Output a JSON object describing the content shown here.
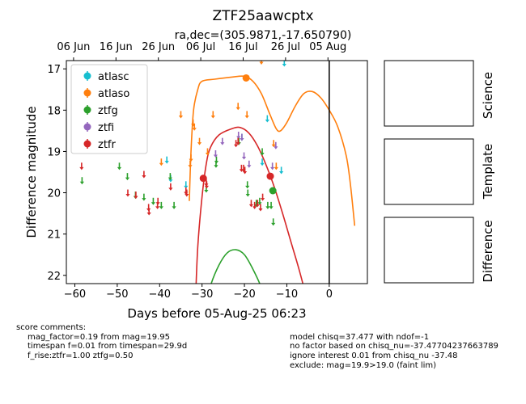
{
  "chart_data": {
    "type": "scatter",
    "title": "ZTF25aawcptx",
    "subtitle": "ra,dec=(305.9871,-17.650790)",
    "xlabel": "Days before 05-Aug-25 06:23",
    "ylabel": "Difference magnitude",
    "xlim": [
      -62,
      9
    ],
    "ylim": [
      22.2,
      16.8
    ],
    "y_inverted": true,
    "xticks": [
      -60,
      -50,
      -40,
      -30,
      -20,
      -10,
      0
    ],
    "yticks": [
      17,
      18,
      19,
      20,
      21,
      22
    ],
    "top_axis_ticks": [
      {
        "x": -60.3,
        "label": "06 Jun"
      },
      {
        "x": -50.3,
        "label": "16 Jun"
      },
      {
        "x": -40.3,
        "label": "26 Jun"
      },
      {
        "x": -30.3,
        "label": "06 Jul"
      },
      {
        "x": -20.3,
        "label": "16 Jul"
      },
      {
        "x": -10.3,
        "label": "26 Jul"
      },
      {
        "x": -0.3,
        "label": "05 Aug"
      }
    ],
    "vline_x": 0,
    "legend_position": "upper-left",
    "series": [
      {
        "name": "atlasc",
        "color": "#17becf",
        "upper_limits": [
          [
            -38.3,
            19.2
          ],
          [
            -37.4,
            19.65
          ],
          [
            -33.8,
            19.8
          ],
          [
            -20.6,
            18.65
          ],
          [
            -15.8,
            19.25
          ],
          [
            -14.6,
            18.2
          ],
          [
            -10.6,
            16.85
          ],
          [
            -11.3,
            19.45
          ]
        ],
        "detections": []
      },
      {
        "name": "atlaso",
        "color": "#ff7f0e",
        "upper_limits": [
          [
            -39.6,
            19.25
          ],
          [
            -35.0,
            18.1
          ],
          [
            -32.1,
            18.3
          ],
          [
            -31.8,
            18.4
          ],
          [
            -32.8,
            19.3
          ],
          [
            -30.6,
            18.75
          ],
          [
            -28.7,
            19.0
          ],
          [
            -27.4,
            18.1
          ],
          [
            -21.5,
            17.9
          ],
          [
            -19.4,
            18.1
          ],
          [
            -16.0,
            16.8
          ],
          [
            -13.1,
            18.8
          ],
          [
            -12.5,
            19.35
          ],
          [
            -32.6,
            19.15
          ]
        ],
        "detections": [
          [
            -19.6,
            17.22
          ]
        ],
        "model": {
          "x_start": -33.0,
          "x_end": 6.0,
          "points": [
            [
              -33.0,
              20.2
            ],
            [
              -32.6,
              19.0
            ],
            [
              -32.0,
              18.0
            ],
            [
              -31.0,
              17.5
            ],
            [
              -30.0,
              17.3
            ],
            [
              -27.0,
              17.25
            ],
            [
              -23.0,
              17.2
            ],
            [
              -20.0,
              17.18
            ],
            [
              -18.0,
              17.3
            ],
            [
              -16.0,
              17.6
            ],
            [
              -14.0,
              18.1
            ],
            [
              -12.5,
              18.45
            ],
            [
              -11.5,
              18.5
            ],
            [
              -10.0,
              18.3
            ],
            [
              -8.0,
              17.9
            ],
            [
              -6.0,
              17.6
            ],
            [
              -4.0,
              17.55
            ],
            [
              -2.0,
              17.7
            ],
            [
              0.0,
              18.0
            ],
            [
              2.0,
              18.4
            ],
            [
              4.0,
              19.1
            ],
            [
              5.0,
              19.8
            ],
            [
              6.0,
              20.8
            ]
          ]
        }
      },
      {
        "name": "ztfg",
        "color": "#2ca02c",
        "upper_limits": [
          [
            -58.3,
            19.7
          ],
          [
            -49.5,
            19.35
          ],
          [
            -47.6,
            19.6
          ],
          [
            -45.7,
            20.05
          ],
          [
            -43.7,
            20.1
          ],
          [
            -41.5,
            20.2
          ],
          [
            -39.6,
            20.3
          ],
          [
            -37.5,
            19.6
          ],
          [
            -36.6,
            20.3
          ],
          [
            -29.0,
            19.9
          ],
          [
            -26.7,
            19.3
          ],
          [
            -26.6,
            19.2
          ],
          [
            -21.3,
            18.75
          ],
          [
            -19.3,
            19.8
          ],
          [
            -19.2,
            20.0
          ],
          [
            -17.2,
            20.25
          ],
          [
            -16.4,
            20.2
          ],
          [
            -15.8,
            19.0
          ],
          [
            -14.5,
            20.3
          ],
          [
            -13.7,
            20.3
          ],
          [
            -13.2,
            20.7
          ]
        ],
        "detections": [
          [
            -13.3,
            19.95
          ]
        ],
        "model": {
          "x_start": -30.0,
          "x_end": -13.0,
          "points": [
            [
              -30.0,
              23.2
            ],
            [
              -29.0,
              22.7
            ],
            [
              -28.0,
              22.25
            ],
            [
              -26.0,
              21.75
            ],
            [
              -24.0,
              21.45
            ],
            [
              -22.0,
              21.38
            ],
            [
              -20.0,
              21.5
            ],
            [
              -18.0,
              21.85
            ],
            [
              -16.0,
              22.3
            ],
            [
              -14.5,
              22.8
            ],
            [
              -13.0,
              23.4
            ]
          ]
        }
      },
      {
        "name": "ztfi",
        "color": "#9467bd",
        "upper_limits": [
          [
            -26.8,
            19.05
          ],
          [
            -25.2,
            18.75
          ],
          [
            -21.4,
            18.6
          ],
          [
            -20.6,
            18.65
          ],
          [
            -20.1,
            19.1
          ],
          [
            -18.9,
            19.3
          ],
          [
            -13.4,
            19.35
          ],
          [
            -12.6,
            18.85
          ]
        ],
        "detections": []
      },
      {
        "name": "ztfr",
        "color": "#d62728",
        "upper_limits": [
          [
            -58.4,
            19.35
          ],
          [
            -47.5,
            20.0
          ],
          [
            -45.6,
            20.05
          ],
          [
            -43.7,
            19.55
          ],
          [
            -42.6,
            20.35
          ],
          [
            -42.5,
            20.45
          ],
          [
            -40.4,
            20.2
          ],
          [
            -40.5,
            20.3
          ],
          [
            -37.4,
            19.85
          ],
          [
            -33.8,
            19.95
          ],
          [
            -33.6,
            20.0
          ],
          [
            -29.0,
            19.75
          ],
          [
            -28.9,
            19.8
          ],
          [
            -22.0,
            18.8
          ],
          [
            -21.5,
            18.75
          ],
          [
            -20.7,
            19.4
          ],
          [
            -20.2,
            19.4
          ],
          [
            -19.9,
            19.45
          ],
          [
            -18.4,
            20.25
          ],
          [
            -17.6,
            20.3
          ],
          [
            -16.9,
            20.25
          ],
          [
            -16.2,
            20.35
          ],
          [
            -15.7,
            20.1
          ]
        ],
        "detections": [
          [
            -29.7,
            19.65
          ],
          [
            -13.9,
            19.6
          ]
        ],
        "model": {
          "x_start": -31.5,
          "x_end": -3.0,
          "points": [
            [
              -31.5,
              22.5
            ],
            [
              -31.0,
              21.3
            ],
            [
              -30.0,
              20.1
            ],
            [
              -29.0,
              19.3
            ],
            [
              -28.0,
              18.9
            ],
            [
              -26.0,
              18.6
            ],
            [
              -23.0,
              18.45
            ],
            [
              -21.0,
              18.42
            ],
            [
              -19.0,
              18.55
            ],
            [
              -17.0,
              18.85
            ],
            [
              -15.0,
              19.3
            ],
            [
              -13.0,
              19.85
            ],
            [
              -11.0,
              20.5
            ],
            [
              -9.0,
              21.2
            ],
            [
              -7.0,
              21.9
            ],
            [
              -5.0,
              22.7
            ],
            [
              -3.0,
              23.6
            ]
          ]
        }
      }
    ]
  },
  "right_panels": [
    "Science",
    "Template",
    "Difference"
  ],
  "comments_left": [
    "score comments:",
    "mag_factor=0.19 from mag=19.95",
    "timespan f=0.01 from timespan=29.9d",
    "f_rise:ztfr=1.00 ztfg=0.50"
  ],
  "comments_right": [
    "model chisq=37.477 with ndof=-1",
    "no factor based on chisq_nu=-37.47704237663789",
    "ignore interest 0.01 from chisq_nu -37.48",
    "exclude: mag=19.9>19.0 (faint lim)"
  ]
}
